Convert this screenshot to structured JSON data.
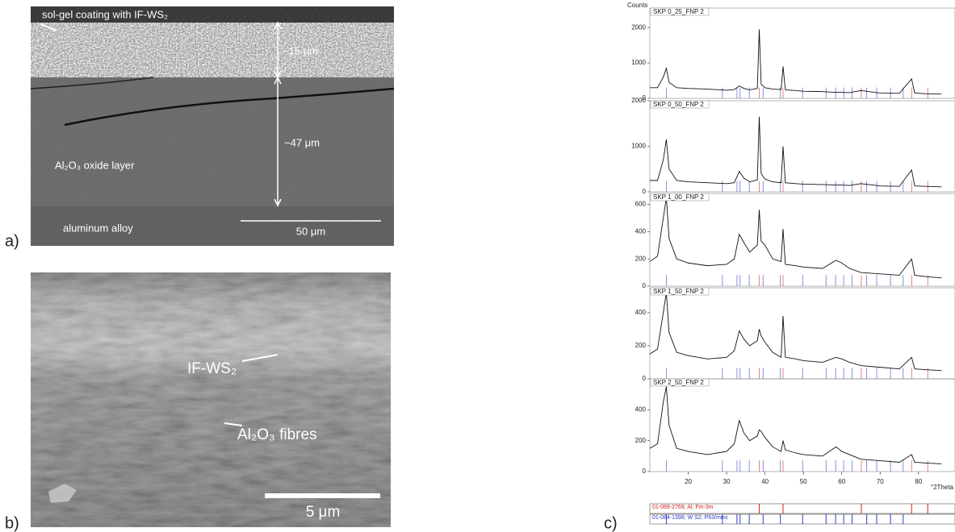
{
  "figure_labels": [
    "a)",
    "b)",
    "c)"
  ],
  "sem_a": {
    "coating_label": "sol-gel coating with IF-WS₂",
    "coating_thickness": "~15 μm",
    "oxide_thickness": "~47 μm",
    "oxide_label": "Al₂O₃ oxide layer",
    "substrate_label": "aluminum alloy",
    "scale_bar": "50 μm"
  },
  "sem_b": {
    "ws2_label": "IF-WS₂",
    "fibres_label": "Al₂O₃ fibres",
    "scale_bar": "5 μm"
  },
  "chart_data": [
    {
      "type": "line",
      "title": "SKP 0_25_FNP 2",
      "y_label": "Counts",
      "color": "#111111",
      "x": [
        10,
        12,
        13.5,
        14.3,
        15,
        17,
        20,
        25,
        30,
        32,
        33.3,
        34.5,
        36,
        38,
        38.5,
        39,
        40,
        42,
        44.2,
        44.7,
        45.3,
        48,
        50,
        55,
        58.5,
        60,
        62,
        65,
        70,
        75,
        78.2,
        79,
        82,
        86
      ],
      "values": [
        300,
        300,
        600,
        850,
        450,
        300,
        280,
        260,
        230,
        250,
        350,
        280,
        240,
        280,
        1950,
        400,
        300,
        260,
        250,
        900,
        240,
        220,
        200,
        190,
        170,
        170,
        160,
        220,
        150,
        140,
        550,
        150,
        130,
        120
      ],
      "xlim": [
        10,
        89.5
      ],
      "ylim": [
        0,
        2550
      ],
      "yticks": [
        0,
        1000,
        2000
      ]
    },
    {
      "type": "line",
      "title": "SKP 0_50_FNP 2",
      "color": "#111111",
      "x": [
        10,
        12,
        13.5,
        14.3,
        15,
        17,
        20,
        25,
        30,
        32,
        33.3,
        34.5,
        36,
        38,
        38.5,
        39,
        40,
        42,
        44.2,
        44.7,
        45.3,
        48,
        50,
        55,
        58.5,
        60,
        62,
        65,
        70,
        75,
        78.2,
        79,
        82,
        86
      ],
      "values": [
        250,
        250,
        700,
        1150,
        500,
        250,
        220,
        200,
        180,
        200,
        450,
        300,
        220,
        260,
        1650,
        400,
        280,
        220,
        200,
        1000,
        200,
        180,
        170,
        160,
        150,
        150,
        140,
        180,
        130,
        120,
        480,
        130,
        120,
        110
      ],
      "xlim": [
        10,
        89.5
      ],
      "ylim": [
        0,
        2000
      ],
      "yticks": [
        0,
        1000,
        2000
      ]
    },
    {
      "type": "line",
      "title": "SKP 1_00_FNP 2",
      "color": "#111111",
      "x": [
        10,
        12,
        13.5,
        14.3,
        15,
        17,
        20,
        25,
        30,
        32,
        33.3,
        34.5,
        36,
        38,
        38.5,
        39,
        40,
        42,
        44.2,
        44.7,
        45.3,
        48,
        50,
        55,
        58.5,
        60,
        62,
        65,
        70,
        75,
        78.2,
        79,
        82,
        86
      ],
      "values": [
        180,
        220,
        500,
        650,
        350,
        200,
        170,
        150,
        160,
        200,
        380,
        320,
        250,
        300,
        560,
        330,
        300,
        200,
        180,
        420,
        160,
        150,
        140,
        130,
        190,
        170,
        130,
        100,
        90,
        80,
        200,
        80,
        70,
        60
      ],
      "xlim": [
        10,
        89.5
      ],
      "ylim": [
        0,
        680
      ],
      "yticks": [
        0,
        200,
        400,
        600
      ]
    },
    {
      "type": "line",
      "title": "SKP 1_50_FNP 2",
      "color": "#111111",
      "x": [
        10,
        12,
        13.5,
        14.3,
        15,
        17,
        20,
        25,
        30,
        32,
        33.3,
        34.5,
        36,
        38,
        38.5,
        39,
        40,
        42,
        44.2,
        44.7,
        45.3,
        48,
        50,
        55,
        58.5,
        60,
        62,
        65,
        70,
        75,
        78.2,
        79,
        82,
        86
      ],
      "values": [
        150,
        180,
        400,
        520,
        280,
        160,
        140,
        120,
        130,
        170,
        290,
        240,
        200,
        230,
        300,
        260,
        220,
        160,
        130,
        380,
        130,
        120,
        110,
        100,
        130,
        120,
        100,
        80,
        70,
        60,
        130,
        60,
        55,
        50
      ],
      "xlim": [
        10,
        89.5
      ],
      "ylim": [
        0,
        550
      ],
      "yticks": [
        0,
        200,
        400
      ]
    },
    {
      "type": "line",
      "title": "SKP 2_50_FNP 2",
      "x_label": "°2Theta",
      "color": "#111111",
      "x": [
        10,
        12,
        13.5,
        14.3,
        15,
        17,
        20,
        25,
        30,
        32,
        33.3,
        34.5,
        36,
        38,
        38.5,
        39,
        40,
        42,
        44.2,
        44.7,
        45.3,
        48,
        50,
        55,
        58.5,
        60,
        62,
        65,
        70,
        75,
        78.2,
        79,
        82,
        86
      ],
      "values": [
        150,
        180,
        450,
        550,
        300,
        150,
        130,
        110,
        130,
        180,
        330,
        250,
        200,
        230,
        270,
        260,
        220,
        160,
        130,
        200,
        140,
        120,
        110,
        100,
        160,
        130,
        110,
        80,
        70,
        60,
        110,
        60,
        55,
        50
      ],
      "xlim": [
        10,
        89.5
      ],
      "ylim": [
        0,
        600
      ],
      "yticks": [
        0,
        200,
        400
      ],
      "xticks": [
        20,
        30,
        40,
        50,
        60,
        70,
        80
      ]
    }
  ],
  "reference_patterns": [
    {
      "label": "01-089-2769; Al; Fm-3m",
      "color": "#d62020",
      "positions": [
        38.5,
        44.7,
        65.1,
        78.2,
        82.4
      ]
    },
    {
      "label": "01-084-1398; W S2; P63/mmc",
      "color": "#2a3cc8",
      "positions": [
        14.3,
        28.9,
        32.7,
        33.5,
        35.9,
        39.5,
        44.0,
        49.8,
        55.9,
        58.4,
        60.5,
        62.7,
        66.5,
        69.1,
        72.7,
        76.0
      ]
    }
  ]
}
